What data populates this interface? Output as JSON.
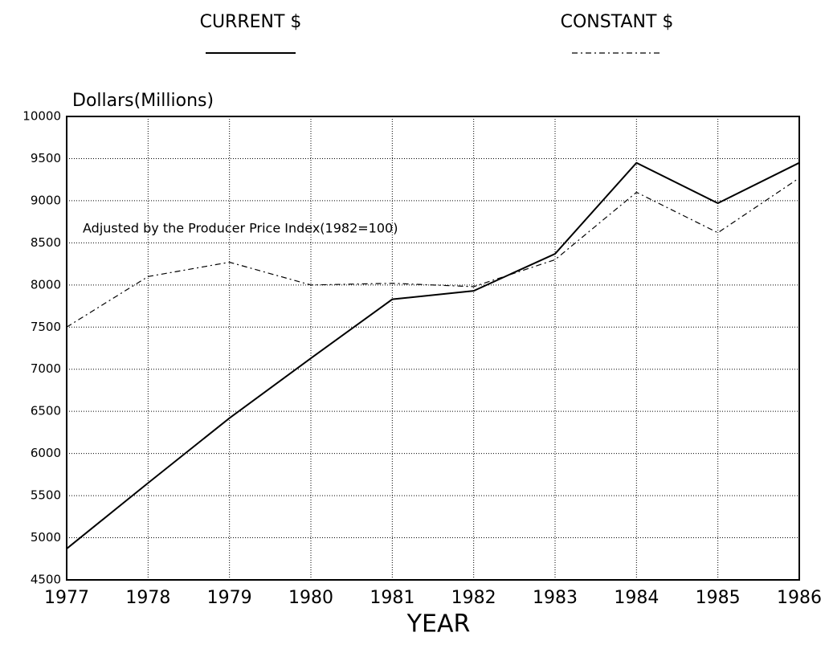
{
  "chart_data": {
    "type": "line",
    "y_label": "Dollars(Millions)",
    "x_label": "YEAR",
    "annotation": "Adjusted by the Producer Price Index(1982=100)",
    "x": [
      1977,
      1978,
      1979,
      1980,
      1981,
      1982,
      1983,
      1984,
      1985,
      1986
    ],
    "xlim": [
      1977,
      1986
    ],
    "xticks": [
      1977,
      1978,
      1979,
      1980,
      1981,
      1982,
      1983,
      1984,
      1985,
      1986
    ],
    "ylim": [
      4500,
      10000
    ],
    "yticks": [
      4500,
      5000,
      5500,
      6000,
      6500,
      7000,
      7500,
      8000,
      8500,
      9000,
      9500,
      10000
    ],
    "grid": true,
    "series": [
      {
        "name": "CURRENT $",
        "color": "#000000",
        "style": "solid",
        "values": [
          4870,
          5650,
          6420,
          7130,
          7830,
          7930,
          8370,
          9450,
          8970,
          9450
        ]
      },
      {
        "name": "CONSTANT $",
        "color": "#000000",
        "style": "dashed",
        "values": [
          7500,
          8100,
          8270,
          8000,
          8020,
          7980,
          8300,
          9100,
          8620,
          9270
        ]
      }
    ]
  }
}
